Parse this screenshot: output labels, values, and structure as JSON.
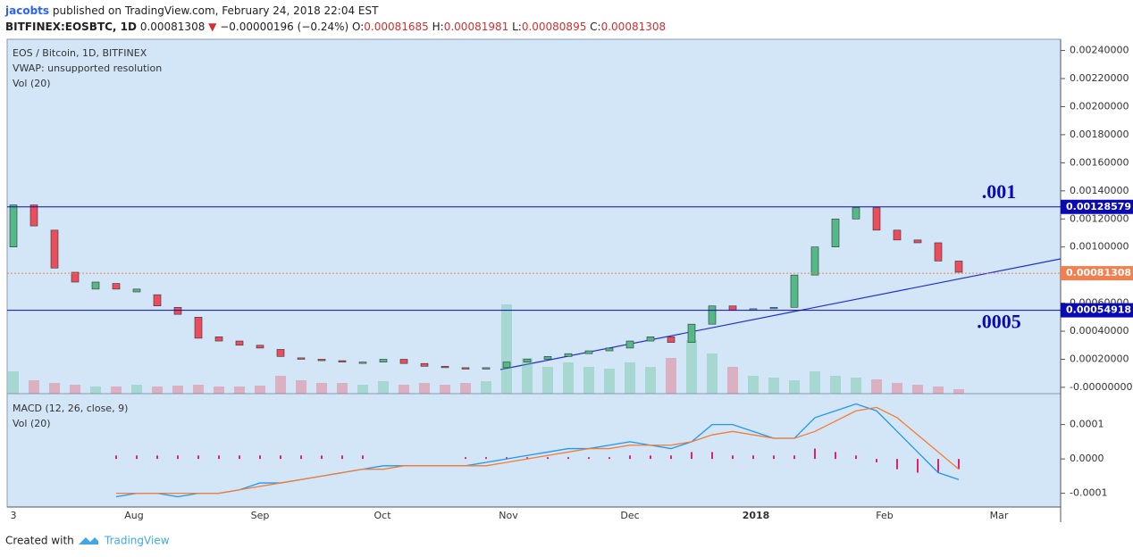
{
  "header": {
    "author": "jacobts",
    "published": "published on TradingView.com, February 24, 2018 22:04 EST",
    "symbol": "BITFINEX:EOSBTC, 1D",
    "last": "0.00081308",
    "arrow": "▼",
    "change": "−0.00000196 (−0.24%)",
    "o_label": "O:",
    "o": "0.00081685",
    "h_label": "H:",
    "h": "0.00081981",
    "l_label": "L:",
    "l": "0.00080895",
    "c_label": "C:",
    "c": "0.00081308"
  },
  "chart_data": [
    {
      "type": "candlestick",
      "legend": [
        "EOS / Bitcoin, 1D, BITFINEX",
        "VWAP: unsupported resolution",
        "Vol (20)"
      ],
      "open": [
        0.001,
        0.0013,
        0.00112,
        0.00082,
        0.0007,
        0.00074,
        0.00068,
        0.00066,
        0.00057,
        0.0005,
        0.00036,
        0.00033,
        0.0003,
        0.00027,
        0.00021,
        0.0002,
        0.00019,
        0.00018,
        0.00018,
        0.0002,
        0.00017,
        0.00015,
        0.00014,
        0.00013,
        0.00014,
        0.00018,
        0.0002,
        0.00022,
        0.00024,
        0.00026,
        0.00028,
        0.00033,
        0.00036,
        0.00032,
        0.00045,
        0.00058,
        0.00055,
        0.00056,
        0.00057,
        0.0008,
        0.001,
        0.0012,
        0.00128,
        0.00112,
        0.00105,
        0.00103,
        0.0009
      ],
      "close": [
        0.0013,
        0.00115,
        0.00085,
        0.00075,
        0.00075,
        0.0007,
        0.0007,
        0.00058,
        0.00052,
        0.00035,
        0.00033,
        0.0003,
        0.00028,
        0.00022,
        0.0002,
        0.00019,
        0.00018,
        0.00018,
        0.0002,
        0.00017,
        0.00015,
        0.00014,
        0.00013,
        0.00014,
        0.00018,
        0.0002,
        0.00022,
        0.00024,
        0.00026,
        0.00028,
        0.00033,
        0.00036,
        0.00032,
        0.00045,
        0.00058,
        0.00055,
        0.00056,
        0.00057,
        0.0008,
        0.001,
        0.0012,
        0.00128,
        0.00112,
        0.00105,
        0.00103,
        0.0009,
        0.00082
      ],
      "volume": [
        25,
        15,
        12,
        10,
        8,
        8,
        10,
        8,
        9,
        10,
        8,
        8,
        9,
        20,
        15,
        12,
        12,
        10,
        14,
        10,
        12,
        10,
        12,
        14,
        100,
        40,
        30,
        35,
        30,
        28,
        35,
        30,
        40,
        60,
        45,
        30,
        20,
        18,
        15,
        25,
        20,
        18,
        16,
        12,
        10,
        8,
        5
      ],
      "up_color": "#53b987",
      "down_color": "#eb4d5c",
      "ylim": [
        -4.5e-05,
        0.00248
      ],
      "yticks": [
        {
          "value": 0.0024,
          "label": "0.00240000"
        },
        {
          "value": 0.0022,
          "label": "0.00220000"
        },
        {
          "value": 0.002,
          "label": "0.00200000"
        },
        {
          "value": 0.0018,
          "label": "0.00180000"
        },
        {
          "value": 0.0016,
          "label": "0.00160000"
        },
        {
          "value": 0.0014,
          "label": "0.00140000"
        },
        {
          "value": 0.0012,
          "label": "0.00120000"
        },
        {
          "value": 0.001,
          "label": "0.00100000"
        },
        {
          "value": 0.0008,
          "label": "0.00080000"
        },
        {
          "value": 0.0006,
          "label": "0.00060000"
        },
        {
          "value": 0.0004,
          "label": "0.00040000"
        },
        {
          "value": 0.0002,
          "label": "0.00020000"
        },
        {
          "value": 0,
          "label": "-0.00000000"
        }
      ],
      "price_lines": [
        {
          "value": 0.00128579,
          "label": "0.00128579",
          "color": "#0a0ab4",
          "annotation": ".001"
        },
        {
          "value": 0.00054918,
          "label": "0.00054918",
          "color": "#0a0ab4",
          "annotation": ".0005"
        },
        {
          "value": 0.00081308,
          "label": "0.00081308",
          "color": "#f47f4e"
        }
      ],
      "x_labels": [
        "3",
        "Aug",
        "Sep",
        "Oct",
        "Nov",
        "Dec",
        "2018",
        "Feb",
        "Mar"
      ]
    },
    {
      "type": "macd",
      "legend": [
        "MACD (12, 26, close, 9)",
        "Vol (20)"
      ],
      "series": [
        {
          "name": "MACD",
          "color": "#2196f3",
          "values": [
            null,
            null,
            null,
            null,
            null,
            -0.00011,
            -0.0001,
            -0.0001,
            -0.00011,
            -0.0001,
            -0.0001,
            -9e-05,
            -7e-05,
            -7e-05,
            -6e-05,
            -5e-05,
            -4e-05,
            -3e-05,
            -2e-05,
            -2e-05,
            -2e-05,
            -2e-05,
            -2e-05,
            -1e-05,
            0,
            1e-05,
            2e-05,
            3e-05,
            3e-05,
            4e-05,
            5e-05,
            4e-05,
            3e-05,
            5e-05,
            0.0001,
            0.0001,
            8e-05,
            6e-05,
            6e-05,
            0.00012,
            0.00014,
            0.00016,
            0.00014,
            8e-05,
            2e-05,
            -4e-05,
            -6e-05
          ]
        },
        {
          "name": "Signal",
          "color": "#f57c30",
          "values": [
            null,
            null,
            null,
            null,
            null,
            -0.0001,
            -0.0001,
            -0.0001,
            -0.0001,
            -0.0001,
            -0.0001,
            -9e-05,
            -8e-05,
            -7e-05,
            -6e-05,
            -5e-05,
            -4e-05,
            -3e-05,
            -3e-05,
            -2e-05,
            -2e-05,
            -2e-05,
            -2e-05,
            -2e-05,
            -1e-05,
            0,
            1e-05,
            2e-05,
            3e-05,
            3e-05,
            4e-05,
            4e-05,
            4e-05,
            5e-05,
            7e-05,
            8e-05,
            7e-05,
            6e-05,
            6e-05,
            8e-05,
            0.00011,
            0.00014,
            0.00015,
            0.00012,
            7e-05,
            2e-05,
            -3e-05
          ]
        }
      ],
      "histogram": [
        null,
        null,
        null,
        null,
        null,
        1e-05,
        1e-05,
        1e-05,
        1e-05,
        1e-05,
        1e-05,
        1e-05,
        1e-05,
        1e-05,
        1e-05,
        1e-05,
        1e-05,
        1e-05,
        null,
        null,
        null,
        null,
        5e-06,
        5e-06,
        5e-06,
        5e-06,
        5e-06,
        5e-06,
        5e-06,
        5e-06,
        1e-05,
        1e-05,
        1e-05,
        2e-05,
        2e-05,
        1e-05,
        1e-05,
        1e-05,
        1e-05,
        3e-05,
        2e-05,
        1e-05,
        -1e-05,
        -3e-05,
        -4e-05,
        -4e-05,
        -3e-05
      ],
      "histogram_color": "#e91e63",
      "ylim": [
        -0.00014,
        0.00019
      ],
      "yticks": [
        0.0001,
        {
          "value": 0,
          "label": "0.0000"
        },
        -0.0001
      ]
    }
  ],
  "footer": {
    "created": "Created with",
    "brand": "TradingView"
  }
}
